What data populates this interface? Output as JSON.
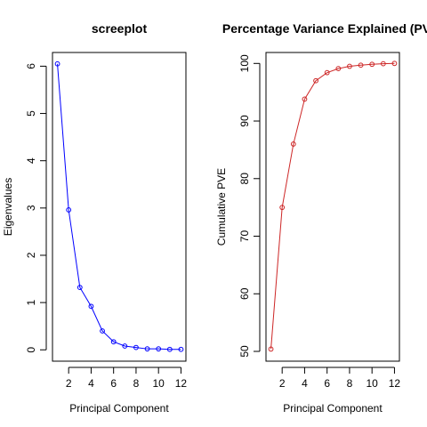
{
  "chart_data": [
    {
      "type": "line",
      "title": "screeplot",
      "xlabel": "Principal Component",
      "ylabel": "Eigenvalues",
      "x": [
        1,
        2,
        3,
        4,
        5,
        6,
        7,
        8,
        9,
        10,
        11,
        12
      ],
      "series": [
        {
          "values": [
            6.05,
            2.96,
            1.32,
            0.92,
            0.4,
            0.17,
            0.08,
            0.05,
            0.02,
            0.02,
            0.01,
            0.01
          ]
        }
      ],
      "xlim": [
        0.56,
        12.44
      ],
      "ylim": [
        -0.24,
        6.29
      ],
      "xticks": [
        2,
        4,
        6,
        8,
        10,
        12
      ],
      "yticks": [
        0,
        1,
        2,
        3,
        4,
        5,
        6
      ],
      "color": "#0000ff",
      "marker": "open-circle",
      "grid": false
    },
    {
      "type": "line",
      "title": "Percentage Variance Explained (PVE)",
      "xlabel": "Principal Component",
      "ylabel": "Cumulative PVE",
      "x": [
        1,
        2,
        3,
        4,
        5,
        6,
        7,
        8,
        9,
        10,
        11,
        12
      ],
      "series": [
        {
          "values": [
            50.4,
            75.0,
            86.0,
            93.8,
            97.0,
            98.4,
            99.1,
            99.5,
            99.7,
            99.85,
            99.95,
            100.0
          ]
        }
      ],
      "xlim": [
        0.56,
        12.44
      ],
      "ylim": [
        48.3,
        101.9
      ],
      "xticks": [
        2,
        4,
        6,
        8,
        10,
        12
      ],
      "yticks": [
        50,
        60,
        70,
        80,
        90,
        100
      ],
      "color": "#cd2626",
      "marker": "open-circle",
      "grid": false
    }
  ]
}
